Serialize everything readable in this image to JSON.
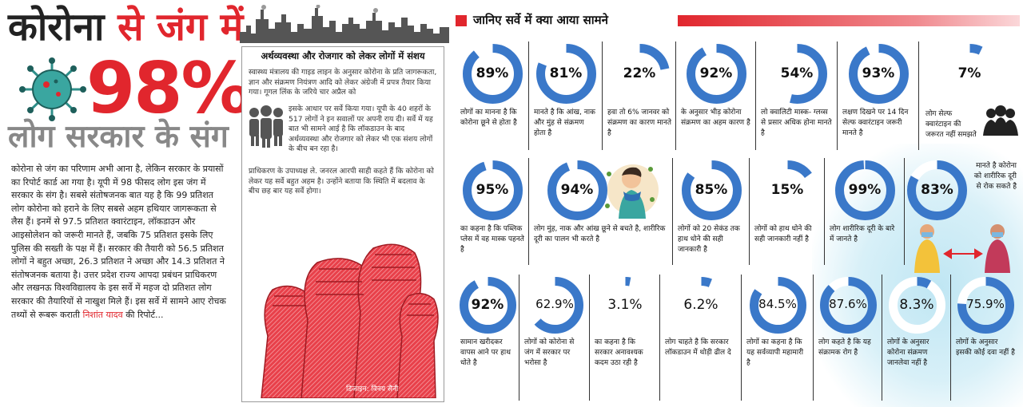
{
  "left": {
    "headline_part1": "कोरोना",
    "headline_part2": " से जंग में",
    "headline_percent": "98%",
    "headline_part3": "लोग सरकार के संग",
    "body": "कोरोना से जंग का परिणाम अभी आना है, लेकिन सरकार के प्रयासों का रिपोर्ट कार्ड आ गया है। यूपी में 98 फीसद लोग इस जंग में सरकार के संग है। सबसे संतोषजनक बात यह है कि 99 प्रतिशत लोग कोरोना को हराने के लिए सबसे अहम हथियार जागरूकता से लैस हैं। इनमें से 97.5 प्रतिशत क्वारंटाइन, लॉकडाउन और आइसोलेशन को जरूरी मानते हैं, जबकि 75 प्रतिशत इसके लिए पुलिस की सख्ती के पक्ष में हैं। सरकार की तैयारी को 56.5 प्रतिशत लोगों ने बहुत अच्छा, 26.3 प्रतिशत ने अच्छा और 14.3 प्रतिशत ने संतोषजनक बताया है। उत्तर प्रदेश राज्य आपदा प्रबंधन प्राधिकरण और लखनऊ विश्वविद्यालय के इस सर्वे में महज दो प्रतिशत लोग सरकार की तैयारियों से नाखुश मिले हैं। इस सर्वे में सामने आए रोचक तथ्यों से रूबरू कराती",
    "author": "निशांत यादव",
    "body_end": " की रिपोर्ट..."
  },
  "middle": {
    "title": "अर्थव्यवस्था और रोजगार को लेकर लोगों में संशय",
    "text1": "स्वास्थ्य मंत्रालय की गाइड लाइन के अनुसार कोरोना के प्रति जागरूकता, ज्ञान और संक्रमण नियंत्रण आदि को लेकर अंग्रेजी में प्रपत्र तैयार किया गया। गूगल लिंक के जरिये चार अप्रैल को",
    "text2": "इसके आधार पर सर्वे किया गया। यूपी के 40 शहरों के 517 लोगों ने इन सवालों पर अपनी राय दी। सर्वे में यह बात भी सामने आई है कि लॉकडाउन के बाद अर्थव्यवस्था और रोजगार को लेकर भी एक संशय लोगों के बीच बन रहा है।",
    "text3": "प्राधिकरण के उपाध्यक्ष ले. जनरल आरपी साही कहते हैं कि कोरोना को लेकर यह सर्वे बहुत अहम है। उन्होंने बताया कि स्थिति में बदलाव के बीच छह बार यह सर्वे होगा।",
    "credit": "डिजाइन: विनय सैनी"
  },
  "survey": {
    "header": "जानिए सर्वे में क्या आया सामने",
    "colors": {
      "ring": "#3a78c9",
      "ring_track": "#ffffff",
      "accent": "#e1262d"
    },
    "stats": [
      {
        "value": 89,
        "label": "89%",
        "text": "लोगों का मानना है कि कोरोना छूने से होता है"
      },
      {
        "value": 81,
        "label": "81%",
        "text": "मानते है कि आंख, नाक और मुंह से संक्रमण होता है"
      },
      {
        "value": 22,
        "label": "22%",
        "text": "हवा तो 6% जानवर को संक्रमण का कारण मानते है"
      },
      {
        "value": 92,
        "label": "92%",
        "text": "के अनुसार भीड़ कोरोना संक्रमण का अहम कारण है"
      },
      {
        "value": 54,
        "label": "54%",
        "text": "लो क्वालिटी मास्क- ग्लव्स से प्रसार अधिक होना मानते है"
      },
      {
        "value": 93,
        "label": "93%",
        "text": "लक्षण दिखने पर 14 दिन सेल्फ क्वारंटाइन जरूरी मानते है"
      },
      {
        "value": 7,
        "label": "7%",
        "text": "लोग सेल्फ क्वारंटाइन की जरूरत नहीं समझते"
      },
      {
        "value": 95,
        "label": "95%",
        "text": "का कहना है कि पब्लिक प्लेस में वह मास्क पहनते है"
      },
      {
        "value": 94,
        "label": "94%",
        "text": "लोग मुंह, नाक और आंख छूने से बचते है, शारीरिक दूरी का पालन भी करते है"
      },
      {
        "value": 85,
        "label": "85%",
        "text": "लोगों को 20 सेकंड तक हाथ धोने की सही जानकारी है"
      },
      {
        "value": 15,
        "label": "15%",
        "text": "लोगों को हाथ धोने की सही जानकारी नहीं है"
      },
      {
        "value": 99,
        "label": "99%",
        "text": "लोग शारीरिक दूरी के बारे में जानते है"
      },
      {
        "value": 83,
        "label": "83%",
        "text": "मानते है कोरोना को शारीरिक दूरी से रोक सकते है"
      },
      {
        "value": 92,
        "label": "92%",
        "text": "सामान खरीदकर वापस आने पर हाथ धोते है"
      },
      {
        "value": 62.9,
        "label": "62.9%",
        "text": "लोगों को कोरोना से जंग में सरकार पर भरोसा है"
      },
      {
        "value": 3.1,
        "label": "3.1%",
        "text": "का कहना है कि सरकार अनावश्यक कदम उठा रही है"
      },
      {
        "value": 6.2,
        "label": "6.2%",
        "text": "लोग चाहते है कि सरकार लॉकडाउन में थोड़ी ढील दे"
      },
      {
        "value": 84.5,
        "label": "84.5%",
        "text": "लोगों का कहना है कि यह सर्वव्यापी महामारी है"
      },
      {
        "value": 87.6,
        "label": "87.6%",
        "text": "लोग कहते है कि यह संक्रामक रोग है"
      },
      {
        "value": 8.3,
        "label": "8.3%",
        "text": "लोगों के अनुसार कोरोना संक्रमण जानलेवा नहीं है"
      },
      {
        "value": 75.9,
        "label": "75.9%",
        "text": "लोगों के अनुसार इसकी कोई दवा नहीं है"
      }
    ]
  }
}
